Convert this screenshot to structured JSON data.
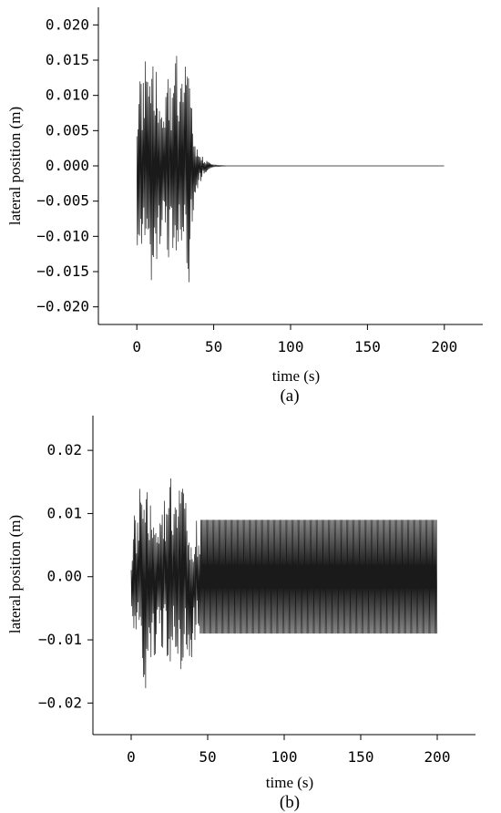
{
  "colors": {
    "axis": "#000000",
    "signal": "#1a1a1a",
    "background": "#ffffff"
  },
  "chart_data": [
    {
      "type": "line",
      "caption": "(a)",
      "xlabel": "time (s)",
      "ylabel": "lateral position (m)",
      "xlim": [
        -25,
        225
      ],
      "ylim": [
        -0.0225,
        0.0225
      ],
      "xticks": [
        0,
        50,
        100,
        150,
        200
      ],
      "xtick_labels": [
        "0",
        "50",
        "100",
        "150",
        "200"
      ],
      "yticks": [
        0.02,
        0.015,
        0.01,
        0.005,
        0.0,
        -0.005,
        -0.01,
        -0.015,
        -0.02
      ],
      "ytick_labels": [
        "0.020",
        "0.015",
        "0.010",
        "0.005",
        "0.000",
        "−0.005",
        "−0.010",
        "−0.015",
        "−0.020"
      ],
      "grid": false,
      "series": [
        {
          "x": [
            0,
            2,
            4,
            6,
            8,
            10,
            12,
            14,
            16,
            18,
            20,
            22,
            24,
            26,
            28,
            30,
            32,
            34,
            36,
            37,
            38,
            40,
            42,
            44,
            46,
            48,
            50,
            55,
            60,
            80,
            100,
            150,
            200
          ],
          "upper": [
            0.012,
            0.016,
            0.013,
            0.0162,
            0.012,
            0.014,
            0.015,
            0.01,
            0.013,
            0.011,
            0.016,
            0.012,
            0.014,
            0.018,
            0.011,
            0.013,
            0.017,
            0.012,
            0.008,
            0.005,
            0.003,
            0.002,
            0.0015,
            0.001,
            0.0006,
            0.0003,
            0.0001,
            5e-05,
            0.0,
            0.0,
            0.0,
            0.0,
            0.0
          ],
          "lower": [
            -0.011,
            -0.016,
            -0.0178,
            -0.014,
            -0.012,
            -0.0178,
            -0.013,
            -0.015,
            -0.011,
            -0.012,
            -0.014,
            -0.016,
            -0.013,
            -0.012,
            -0.015,
            -0.011,
            -0.016,
            -0.0183,
            -0.009,
            -0.006,
            -0.004,
            -0.003,
            -0.002,
            -0.0012,
            -0.0006,
            -0.0003,
            -0.0001,
            -5e-05,
            0.0,
            0.0,
            0.0,
            0.0,
            0.0
          ]
        }
      ]
    },
    {
      "type": "line",
      "caption": "(b)",
      "xlabel": "time (s)",
      "ylabel": "lateral position (m)",
      "xlim": [
        -25,
        225
      ],
      "ylim": [
        -0.025,
        0.0255
      ],
      "xticks": [
        0,
        50,
        100,
        150,
        200
      ],
      "xtick_labels": [
        "0",
        "50",
        "100",
        "150",
        "200"
      ],
      "yticks": [
        0.02,
        0.01,
        0.0,
        -0.01,
        -0.02
      ],
      "ytick_labels": [
        "0.02",
        "0.01",
        "0.00",
        "−0.01",
        "−0.02"
      ],
      "grid": false,
      "series": [
        {
          "x": [
            0,
            2,
            4,
            6,
            8,
            10,
            12,
            14,
            16,
            18,
            20,
            22,
            24,
            26,
            28,
            30,
            32,
            34,
            36,
            38,
            40,
            41,
            42,
            44,
            60,
            100,
            150,
            200
          ],
          "upper": [
            0.003,
            0.013,
            0.009,
            0.016,
            0.011,
            0.014,
            0.012,
            0.01,
            0.013,
            0.011,
            0.012,
            0.014,
            0.013,
            0.018,
            0.012,
            0.011,
            0.017,
            0.014,
            0.012,
            0.006,
            0.004,
            0.003,
            0.009,
            0.009,
            0.009,
            0.009,
            0.009,
            0.009
          ],
          "lower": [
            -0.003,
            -0.014,
            -0.012,
            -0.01,
            -0.022,
            -0.016,
            -0.012,
            -0.015,
            -0.014,
            -0.011,
            -0.013,
            -0.012,
            -0.016,
            -0.013,
            -0.012,
            -0.015,
            -0.019,
            -0.014,
            -0.012,
            -0.013,
            -0.013,
            -0.012,
            -0.009,
            -0.009,
            -0.009,
            -0.009,
            -0.009,
            -0.009
          ]
        }
      ]
    }
  ]
}
